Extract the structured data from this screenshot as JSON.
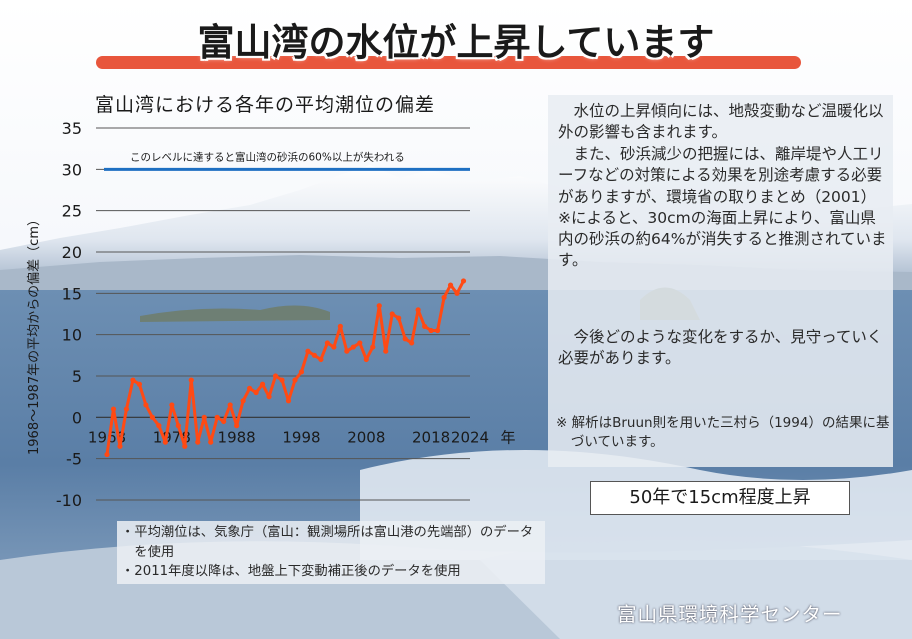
{
  "header": {
    "title": "富山湾の水位が上昇しています"
  },
  "chart_title": "富山湾における各年の平均潮位の偏差",
  "side_panel": {
    "para1": "水位の上昇傾向には、地殻変動など温暖化以外の影響も含まれます。",
    "para2": "また、砂浜減少の把握には、離岸堤や人工リーフなどの対策による効果を別途考慮する必要がありますが、環境省の取りまとめ（2001）※によると、30cmの海面上昇により、富山県内の砂浜の約64%が消失すると推測されています。",
    "para3": "今後どのような変化をするか、見守っていく必要があります。",
    "note": "※ 解析はBruun則を用いた三村ら（1994）の結果に基づいています。"
  },
  "badge": "50年で15cm程度上昇",
  "footnotes": [
    "・平均潮位は、気象庁（富山：観測場所は富山港の先端部）のデータを使用",
    "・2011年度以降は、地盤上下変動補正後のデータを使用"
  ],
  "credit": "富山県環境科学センター",
  "colors": {
    "series": "#ff4a14",
    "threshold": "#1e6fc2",
    "title_bar": "#e8563c"
  },
  "chart_data": {
    "type": "line",
    "title": "富山湾における各年の平均潮位の偏差",
    "ylabel": "1968～1987年の平均からの偏差（cm）",
    "xlabel": "",
    "x_unit_label": "年",
    "ylim": [
      -10,
      35
    ],
    "xlim": [
      1968,
      2024
    ],
    "y_ticks": [
      -10,
      -5,
      0,
      5,
      10,
      15,
      20,
      25,
      30,
      35
    ],
    "x_ticks": [
      "1968",
      "1978",
      "1988",
      "1998",
      "2008",
      "2018",
      "2024"
    ],
    "grid": true,
    "threshold": {
      "value": 30,
      "label": "このレベルに達すると富山湾の砂浜の60%以上が失われる"
    },
    "series": [
      {
        "x": [
          1968,
          1969,
          1970,
          1971,
          1972,
          1973,
          1974,
          1975,
          1976,
          1977,
          1978,
          1979,
          1980,
          1981,
          1982,
          1983,
          1984,
          1985,
          1986,
          1987,
          1988,
          1989,
          1990,
          1991,
          1992,
          1993,
          1994,
          1995,
          1996,
          1997,
          1998,
          1999,
          2000,
          2001,
          2002,
          2003,
          2004,
          2005,
          2006,
          2007,
          2008,
          2009,
          2010,
          2011,
          2012,
          2013,
          2014,
          2015,
          2016,
          2017,
          2018,
          2019,
          2020,
          2021,
          2022,
          2023
        ],
        "values": [
          -4.5,
          1.0,
          -3.5,
          1.0,
          4.5,
          4.0,
          1.5,
          0.0,
          -1.0,
          -3.0,
          1.5,
          -1.0,
          -3.5,
          4.5,
          -3.0,
          0.0,
          -3.0,
          0.0,
          -0.5,
          1.5,
          -1.0,
          2.0,
          3.5,
          3.0,
          4.0,
          2.5,
          5.0,
          4.5,
          2.0,
          4.5,
          5.5,
          8.0,
          7.5,
          7.0,
          9.0,
          8.5,
          11.0,
          8.0,
          8.5,
          9.0,
          7.0,
          8.5,
          13.5,
          8.0,
          12.5,
          12.0,
          9.5,
          9.0,
          13.0,
          11.0,
          10.5,
          10.5,
          14.5,
          16.0,
          15.0,
          16.5
        ]
      }
    ]
  }
}
